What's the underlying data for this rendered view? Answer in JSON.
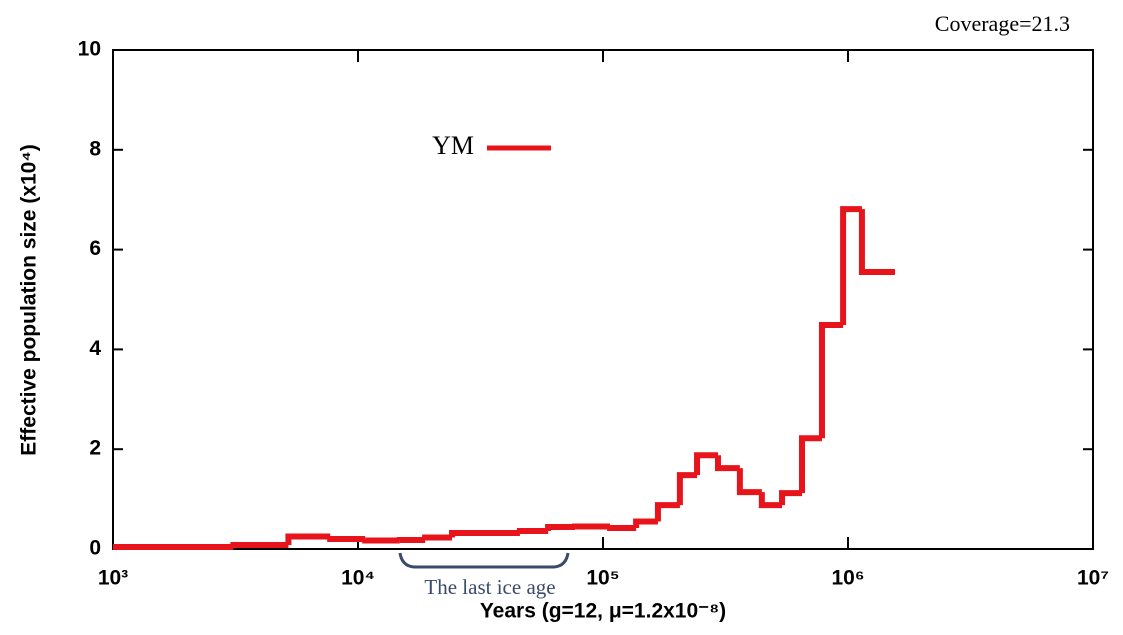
{
  "chart_data": {
    "type": "step",
    "x_label": "Years (g=12, μ=1.2x10⁻⁸)",
    "y_label": "Effective population size (x10⁴)",
    "annotations": {
      "coverage": "Coverage=21.3",
      "ice_age": "The last ice age"
    },
    "log_x": true,
    "legend": "upper-left",
    "x_edges": [
      1000,
      3100,
      5200,
      7700,
      10700,
      14800,
      18800,
      24200,
      45800,
      59700,
      76900,
      106900,
      136500,
      167600,
      206000,
      242000,
      294700,
      362000,
      445000,
      538000,
      649000,
      783000,
      955000,
      1140000,
      1556000
    ],
    "series": [
      {
        "name": "YM",
        "color": "#e8141c",
        "values": [
          0.04,
          0.08,
          0.25,
          0.2,
          0.17,
          0.18,
          0.23,
          0.32,
          0.36,
          0.44,
          0.45,
          0.42,
          0.55,
          0.88,
          1.48,
          1.88,
          1.62,
          1.14,
          0.88,
          1.12,
          2.22,
          4.49,
          6.81,
          5.55
        ]
      }
    ],
    "xlim": [
      1000,
      10000000
    ],
    "xticks": [
      {
        "value": 1000,
        "label": "10³"
      },
      {
        "value": 10000,
        "label": "10⁴"
      },
      {
        "value": 100000,
        "label": "10⁵"
      },
      {
        "value": 1000000,
        "label": "10⁶"
      },
      {
        "value": 10000000,
        "label": "10⁷"
      }
    ],
    "ylim": [
      0,
      10
    ],
    "yticks": [
      0,
      2,
      4,
      6,
      8,
      10
    ]
  }
}
